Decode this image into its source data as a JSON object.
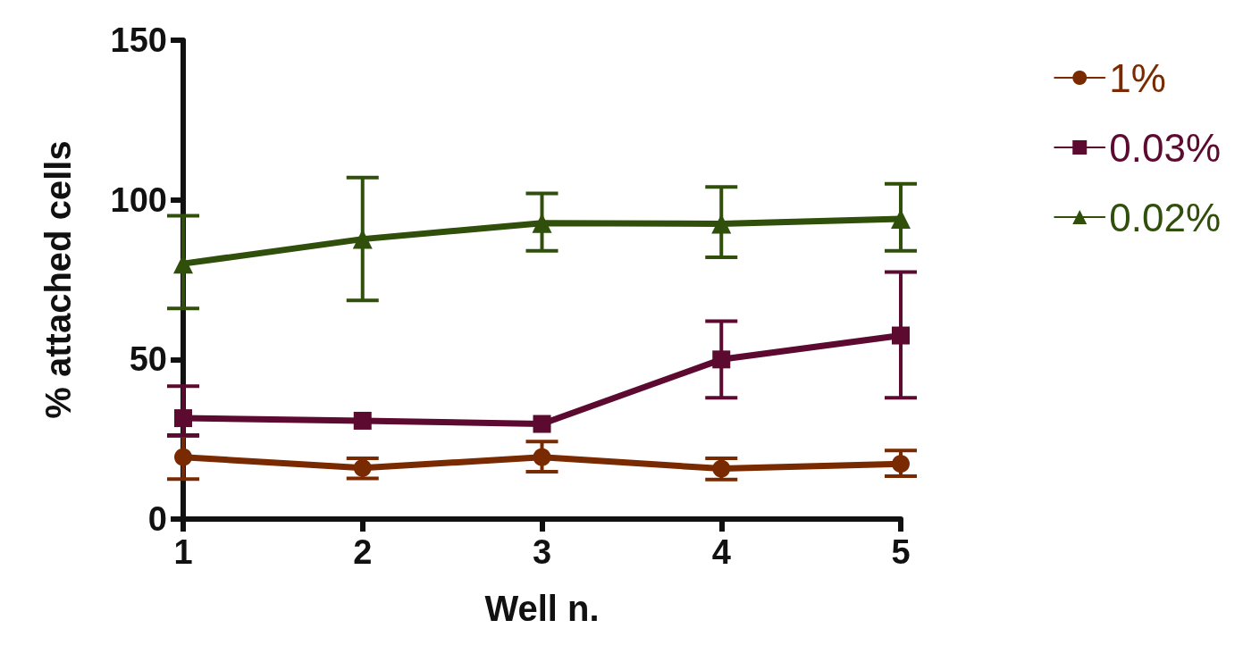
{
  "chart_data": {
    "type": "line",
    "xlabel": "Well n.",
    "ylabel": "% attached cells",
    "x": [
      1,
      2,
      3,
      4,
      5
    ],
    "xlim": [
      1,
      5
    ],
    "xticks": [
      1,
      2,
      3,
      4,
      5
    ],
    "ylim": [
      0,
      150
    ],
    "yticks": [
      0,
      50,
      100,
      150
    ],
    "grid": false,
    "legend": "right",
    "line_style": "solid",
    "series": [
      {
        "name": "1%",
        "color": "#7a2a00",
        "marker": "circle",
        "values": [
          19.4,
          16,
          19.4,
          15.8,
          17.3
        ],
        "errors": [
          [
            12.5,
            26
          ],
          [
            12.7,
            19
          ],
          [
            14.8,
            24.3
          ],
          [
            12.4,
            19
          ],
          [
            13.4,
            21.5
          ]
        ]
      },
      {
        "name": "0.03%",
        "color": "#5c0a30",
        "marker": "square",
        "values": [
          31.6,
          30.8,
          29.8,
          50,
          57.5
        ],
        "errors": [
          [
            26.3,
            41.6
          ],
          null,
          null,
          [
            38,
            62
          ],
          [
            38,
            77.4
          ]
        ]
      },
      {
        "name": "0.02%",
        "color": "#2f4f0a",
        "marker": "triangle",
        "values": [
          80,
          87.7,
          92.7,
          92.5,
          94
        ],
        "errors": [
          [
            66,
            95
          ],
          [
            68.5,
            107
          ],
          [
            84,
            102
          ],
          [
            82,
            104
          ],
          [
            84,
            105
          ]
        ]
      }
    ]
  }
}
